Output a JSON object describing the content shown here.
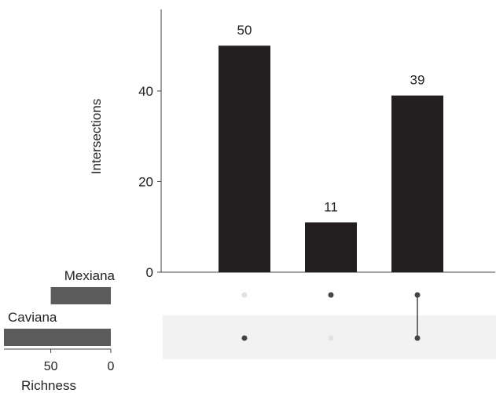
{
  "chart_data": [
    {
      "type": "bar",
      "name": "intersections",
      "ylabel": "Intersections",
      "ylim": [
        0,
        58
      ],
      "yticks": [
        0,
        20,
        40
      ],
      "values": [
        50,
        11,
        39
      ],
      "labels": [
        "50",
        "11",
        "39"
      ],
      "bar_color": "#231f20"
    },
    {
      "type": "matrix",
      "sets": [
        "Mexiana",
        "Caviana"
      ],
      "columns": [
        {
          "Mexiana": false,
          "Caviana": true
        },
        {
          "Mexiana": true,
          "Caviana": false
        },
        {
          "Mexiana": true,
          "Caviana": true
        }
      ],
      "active_color": "#444444",
      "inactive_color": "#e2e2e2"
    },
    {
      "type": "bar",
      "orientation": "horizontal",
      "name": "set-size",
      "xlabel": "Richness",
      "categories": [
        "Mexiana",
        "Caviana"
      ],
      "values": [
        50,
        89
      ],
      "xlim": [
        89,
        0
      ],
      "xticks": [
        50,
        0
      ],
      "bar_color": "#5c5c5c"
    }
  ]
}
